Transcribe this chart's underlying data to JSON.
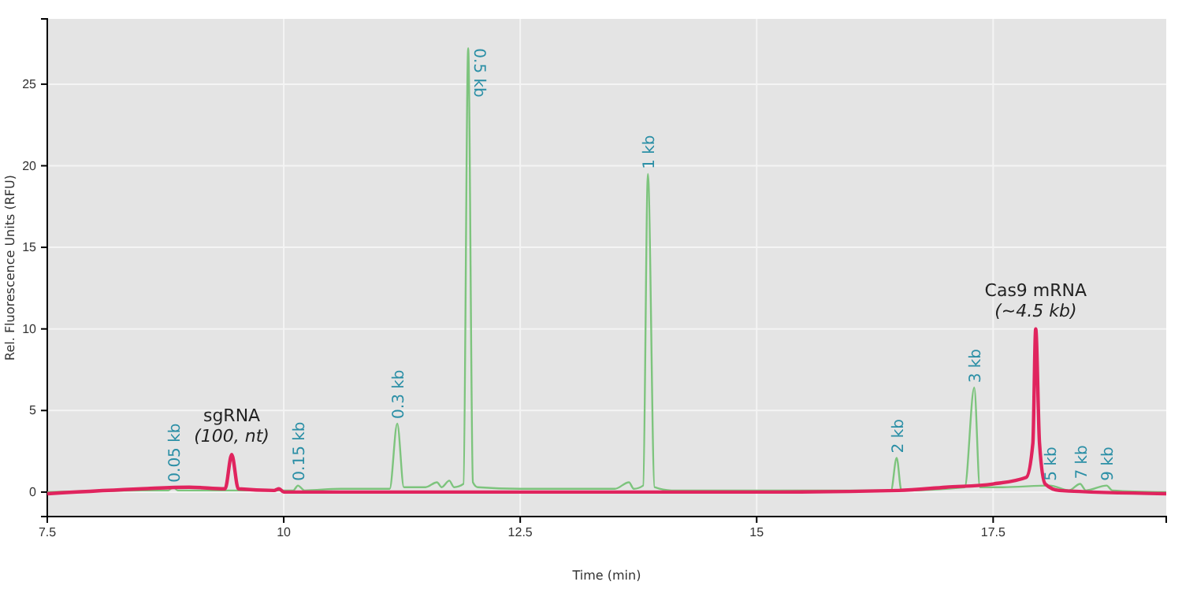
{
  "chart_data": {
    "type": "line",
    "xlabel": "Time (min)",
    "ylabel": "Rel. Fluorescence Units (RFU)",
    "xlim": [
      7.5,
      19.33
    ],
    "xticks": [
      7.5,
      10,
      12.5,
      15,
      17.5
    ],
    "ylim": [
      -1.5,
      29
    ],
    "yticks": [
      0,
      5,
      10,
      15,
      20,
      25
    ],
    "grid": true,
    "line_style": "solid",
    "marker": "none",
    "series": [
      {
        "color": "#7dc47d",
        "x": [
          7.5,
          8.5,
          8.78,
          8.83,
          8.88,
          10.1,
          10.15,
          10.22,
          10.6,
          11.12,
          11.2,
          11.27,
          11.5,
          11.62,
          11.67,
          11.75,
          11.8,
          11.9,
          11.95,
          12.0,
          12.05,
          12.5,
          13.5,
          13.65,
          13.7,
          13.8,
          13.85,
          13.92,
          14.1,
          15,
          16.42,
          16.48,
          16.53,
          17.2,
          17.3,
          17.36,
          17.6,
          18.1,
          18.3,
          18.42,
          18.48,
          18.7,
          18.76,
          19.33
        ],
        "values": [
          0,
          0.1,
          0.1,
          0.3,
          0.1,
          0.1,
          0.4,
          0.1,
          0.2,
          0.2,
          4.2,
          0.3,
          0.3,
          0.6,
          0.3,
          0.7,
          0.3,
          0.5,
          27.2,
          0.6,
          0.3,
          0.2,
          0.2,
          0.6,
          0.2,
          0.4,
          19.5,
          0.3,
          0.1,
          0.1,
          0.1,
          2.1,
          0.1,
          0.3,
          6.4,
          0.3,
          0.3,
          0.4,
          0.1,
          0.5,
          0.1,
          0.4,
          0.1,
          0
        ]
      },
      {
        "color": "#e0245e",
        "x": [
          7.5,
          8.5,
          9.0,
          9.38,
          9.45,
          9.52,
          9.9,
          9.95,
          10.0,
          12,
          15,
          16.5,
          17.0,
          17.5,
          17.85,
          17.92,
          17.95,
          17.99,
          18.05,
          18.2,
          19.33
        ],
        "values": [
          -0.1,
          0.2,
          0.3,
          0.2,
          2.3,
          0.2,
          0.1,
          0.2,
          0,
          0,
          0,
          0.1,
          0.3,
          0.5,
          0.9,
          3,
          10,
          3,
          0.5,
          0.1,
          -0.1
        ]
      }
    ],
    "annotations": [
      {
        "text": "0.05 kb",
        "x": 8.83,
        "y": 0.3
      },
      {
        "text": "0.15 kb",
        "x": 10.15,
        "y": 0.4
      },
      {
        "text": "0.3 kb",
        "x": 11.2,
        "y": 4.2
      },
      {
        "text": "0.5 kb",
        "x": 11.95,
        "y": 27.2
      },
      {
        "text": "1 kb",
        "x": 13.85,
        "y": 19.5
      },
      {
        "text": "2 kb",
        "x": 16.48,
        "y": 2.1
      },
      {
        "text": "3 kb",
        "x": 17.3,
        "y": 6.4
      },
      {
        "text": "5 kb",
        "x": 18.1,
        "y": 0.4
      },
      {
        "text": "7 kb",
        "x": 18.42,
        "y": 0.5
      },
      {
        "text": "9 kb",
        "x": 18.7,
        "y": 0.4
      },
      {
        "text": "sgRNA\n(100, nt)",
        "x": 9.45,
        "y": 2.3
      },
      {
        "text": "Cas9 mRNA\n(~4.5 kb)",
        "x": 17.95,
        "y": 10
      }
    ]
  }
}
